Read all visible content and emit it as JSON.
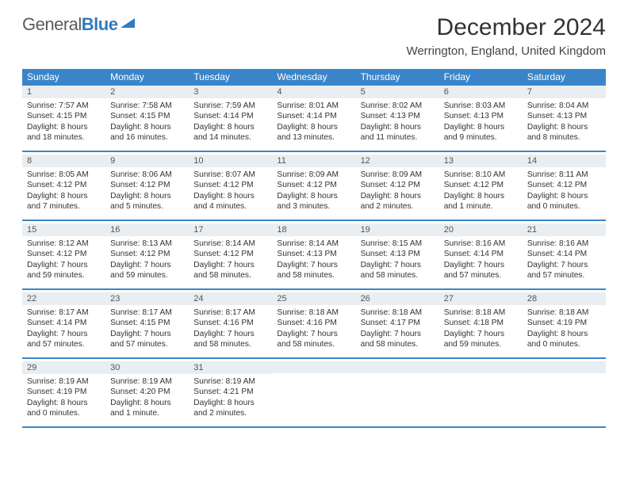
{
  "brand": {
    "part1": "General",
    "part2": "Blue",
    "part1_color": "#5a5a5a",
    "part2_color": "#2f7bbf",
    "icon_color": "#2f7bbf"
  },
  "title": "December 2024",
  "location": "Werrington, England, United Kingdom",
  "colors": {
    "header_bg": "#3a85c9",
    "header_text": "#ffffff",
    "daynum_bg": "#e8eef2",
    "row_border": "#3a85c9",
    "body_text": "#333333"
  },
  "day_headers": [
    "Sunday",
    "Monday",
    "Tuesday",
    "Wednesday",
    "Thursday",
    "Friday",
    "Saturday"
  ],
  "weeks": [
    [
      {
        "n": "1",
        "sr": "Sunrise: 7:57 AM",
        "ss": "Sunset: 4:15 PM",
        "d1": "Daylight: 8 hours",
        "d2": "and 18 minutes."
      },
      {
        "n": "2",
        "sr": "Sunrise: 7:58 AM",
        "ss": "Sunset: 4:15 PM",
        "d1": "Daylight: 8 hours",
        "d2": "and 16 minutes."
      },
      {
        "n": "3",
        "sr": "Sunrise: 7:59 AM",
        "ss": "Sunset: 4:14 PM",
        "d1": "Daylight: 8 hours",
        "d2": "and 14 minutes."
      },
      {
        "n": "4",
        "sr": "Sunrise: 8:01 AM",
        "ss": "Sunset: 4:14 PM",
        "d1": "Daylight: 8 hours",
        "d2": "and 13 minutes."
      },
      {
        "n": "5",
        "sr": "Sunrise: 8:02 AM",
        "ss": "Sunset: 4:13 PM",
        "d1": "Daylight: 8 hours",
        "d2": "and 11 minutes."
      },
      {
        "n": "6",
        "sr": "Sunrise: 8:03 AM",
        "ss": "Sunset: 4:13 PM",
        "d1": "Daylight: 8 hours",
        "d2": "and 9 minutes."
      },
      {
        "n": "7",
        "sr": "Sunrise: 8:04 AM",
        "ss": "Sunset: 4:13 PM",
        "d1": "Daylight: 8 hours",
        "d2": "and 8 minutes."
      }
    ],
    [
      {
        "n": "8",
        "sr": "Sunrise: 8:05 AM",
        "ss": "Sunset: 4:12 PM",
        "d1": "Daylight: 8 hours",
        "d2": "and 7 minutes."
      },
      {
        "n": "9",
        "sr": "Sunrise: 8:06 AM",
        "ss": "Sunset: 4:12 PM",
        "d1": "Daylight: 8 hours",
        "d2": "and 5 minutes."
      },
      {
        "n": "10",
        "sr": "Sunrise: 8:07 AM",
        "ss": "Sunset: 4:12 PM",
        "d1": "Daylight: 8 hours",
        "d2": "and 4 minutes."
      },
      {
        "n": "11",
        "sr": "Sunrise: 8:09 AM",
        "ss": "Sunset: 4:12 PM",
        "d1": "Daylight: 8 hours",
        "d2": "and 3 minutes."
      },
      {
        "n": "12",
        "sr": "Sunrise: 8:09 AM",
        "ss": "Sunset: 4:12 PM",
        "d1": "Daylight: 8 hours",
        "d2": "and 2 minutes."
      },
      {
        "n": "13",
        "sr": "Sunrise: 8:10 AM",
        "ss": "Sunset: 4:12 PM",
        "d1": "Daylight: 8 hours",
        "d2": "and 1 minute."
      },
      {
        "n": "14",
        "sr": "Sunrise: 8:11 AM",
        "ss": "Sunset: 4:12 PM",
        "d1": "Daylight: 8 hours",
        "d2": "and 0 minutes."
      }
    ],
    [
      {
        "n": "15",
        "sr": "Sunrise: 8:12 AM",
        "ss": "Sunset: 4:12 PM",
        "d1": "Daylight: 7 hours",
        "d2": "and 59 minutes."
      },
      {
        "n": "16",
        "sr": "Sunrise: 8:13 AM",
        "ss": "Sunset: 4:12 PM",
        "d1": "Daylight: 7 hours",
        "d2": "and 59 minutes."
      },
      {
        "n": "17",
        "sr": "Sunrise: 8:14 AM",
        "ss": "Sunset: 4:12 PM",
        "d1": "Daylight: 7 hours",
        "d2": "and 58 minutes."
      },
      {
        "n": "18",
        "sr": "Sunrise: 8:14 AM",
        "ss": "Sunset: 4:13 PM",
        "d1": "Daylight: 7 hours",
        "d2": "and 58 minutes."
      },
      {
        "n": "19",
        "sr": "Sunrise: 8:15 AM",
        "ss": "Sunset: 4:13 PM",
        "d1": "Daylight: 7 hours",
        "d2": "and 58 minutes."
      },
      {
        "n": "20",
        "sr": "Sunrise: 8:16 AM",
        "ss": "Sunset: 4:14 PM",
        "d1": "Daylight: 7 hours",
        "d2": "and 57 minutes."
      },
      {
        "n": "21",
        "sr": "Sunrise: 8:16 AM",
        "ss": "Sunset: 4:14 PM",
        "d1": "Daylight: 7 hours",
        "d2": "and 57 minutes."
      }
    ],
    [
      {
        "n": "22",
        "sr": "Sunrise: 8:17 AM",
        "ss": "Sunset: 4:14 PM",
        "d1": "Daylight: 7 hours",
        "d2": "and 57 minutes."
      },
      {
        "n": "23",
        "sr": "Sunrise: 8:17 AM",
        "ss": "Sunset: 4:15 PM",
        "d1": "Daylight: 7 hours",
        "d2": "and 57 minutes."
      },
      {
        "n": "24",
        "sr": "Sunrise: 8:17 AM",
        "ss": "Sunset: 4:16 PM",
        "d1": "Daylight: 7 hours",
        "d2": "and 58 minutes."
      },
      {
        "n": "25",
        "sr": "Sunrise: 8:18 AM",
        "ss": "Sunset: 4:16 PM",
        "d1": "Daylight: 7 hours",
        "d2": "and 58 minutes."
      },
      {
        "n": "26",
        "sr": "Sunrise: 8:18 AM",
        "ss": "Sunset: 4:17 PM",
        "d1": "Daylight: 7 hours",
        "d2": "and 58 minutes."
      },
      {
        "n": "27",
        "sr": "Sunrise: 8:18 AM",
        "ss": "Sunset: 4:18 PM",
        "d1": "Daylight: 7 hours",
        "d2": "and 59 minutes."
      },
      {
        "n": "28",
        "sr": "Sunrise: 8:18 AM",
        "ss": "Sunset: 4:19 PM",
        "d1": "Daylight: 8 hours",
        "d2": "and 0 minutes."
      }
    ],
    [
      {
        "n": "29",
        "sr": "Sunrise: 8:19 AM",
        "ss": "Sunset: 4:19 PM",
        "d1": "Daylight: 8 hours",
        "d2": "and 0 minutes."
      },
      {
        "n": "30",
        "sr": "Sunrise: 8:19 AM",
        "ss": "Sunset: 4:20 PM",
        "d1": "Daylight: 8 hours",
        "d2": "and 1 minute."
      },
      {
        "n": "31",
        "sr": "Sunrise: 8:19 AM",
        "ss": "Sunset: 4:21 PM",
        "d1": "Daylight: 8 hours",
        "d2": "and 2 minutes."
      },
      {
        "empty": true
      },
      {
        "empty": true
      },
      {
        "empty": true
      },
      {
        "empty": true
      }
    ]
  ]
}
